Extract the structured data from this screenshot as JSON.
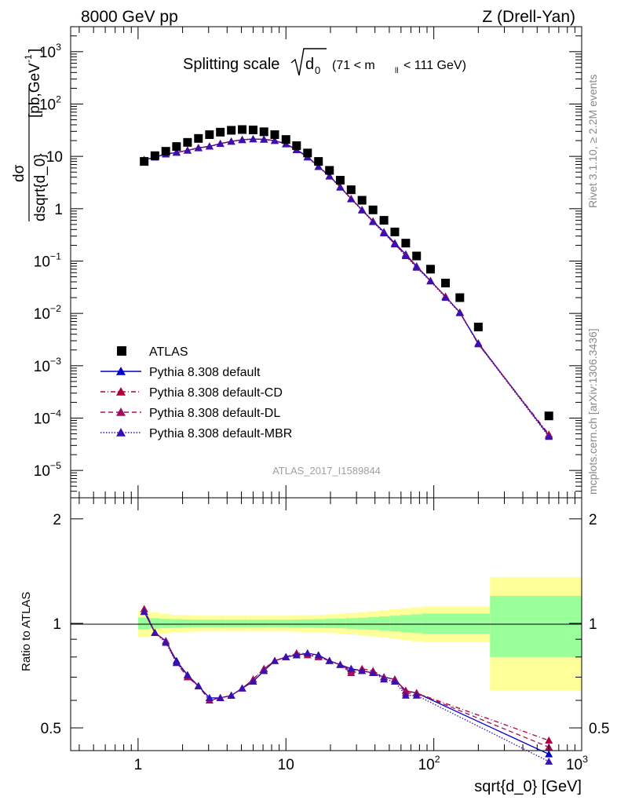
{
  "header": {
    "left_label": "8000 GeV pp",
    "right_label": "Z (Drell-Yan)",
    "title_prefix": "Splitting scale",
    "title_sqrt_arg": "d",
    "title_sqrt_sub": "0",
    "title_range": "(71 < m",
    "title_range_sub": "ll",
    "title_range_end": "< 111 GeV)"
  },
  "side": {
    "rivet": "Rivet 3.1.10, ≥ 2.2M events",
    "mcplots": "mcplots.cern.ch [arXiv:1306.3436]"
  },
  "watermark": "ATLAS_2017_I1589844",
  "axes": {
    "xlabel": "sqrt{d_0} [GeV]",
    "ylabel_main": "[pb,GeV",
    "ylabel_main_sup": "-1",
    "ylabel_main_end": "]",
    "ylabel_frac_num": "dσ",
    "ylabel_frac_den": "dsqrt{d_0}",
    "ylabel_ratio": "Ratio to ATLAS",
    "x_ticks": [
      "1",
      "10",
      "10",
      "10"
    ],
    "x_tick_sups": [
      "",
      "",
      "2",
      "3"
    ],
    "y_ticks_main": [
      {
        "base": "10",
        "sup": "3"
      },
      {
        "base": "10",
        "sup": "2"
      },
      {
        "base": "10",
        "sup": ""
      },
      {
        "base": "1",
        "sup": ""
      },
      {
        "base": "10",
        "sup": "−1"
      },
      {
        "base": "10",
        "sup": "−2"
      },
      {
        "base": "10",
        "sup": "−3"
      },
      {
        "base": "10",
        "sup": "−4"
      },
      {
        "base": "10",
        "sup": "−5"
      }
    ],
    "y_ticks_ratio": [
      "2",
      "1",
      "0.5"
    ]
  },
  "legend": {
    "entries": [
      {
        "label": "ATLAS",
        "color": "#000000",
        "marker": "square",
        "dash": ""
      },
      {
        "label": "Pythia 8.308 default",
        "color": "#0000cc",
        "marker": "triangle",
        "dash": ""
      },
      {
        "label": "Pythia 8.308 default-CD",
        "color": "#b0003c",
        "marker": "triangle",
        "dash": "6,3,1,3"
      },
      {
        "label": "Pythia 8.308 default-DL",
        "color": "#a0105a",
        "marker": "triangle",
        "dash": "6,4"
      },
      {
        "label": "Pythia 8.308 default-MBR",
        "color": "#3a10b0",
        "marker": "triangle",
        "dash": "1.5,2"
      }
    ]
  },
  "chart_data": {
    "type": "scatter",
    "title": "Splitting scale sqrt(d_0) (71 < m_ll < 111 GeV)",
    "xlabel": "sqrt{d_0} [GeV]",
    "ylabel": "dσ/dsqrt{d_0} [pb,GeV^-1]",
    "xscale": "log",
    "yscale": "log",
    "xlim": [
      0.35,
      1000
    ],
    "ylim_main": [
      3e-06,
      3000
    ],
    "ylim_ratio": [
      0.43,
      2.3
    ],
    "x": [
      1.1,
      1.3,
      1.54,
      1.82,
      2.16,
      2.56,
      3.04,
      3.6,
      4.27,
      5.06,
      6.0,
      7.1,
      8.4,
      10.0,
      11.8,
      14.0,
      16.6,
      19.7,
      23.3,
      27.6,
      32.7,
      38.8,
      46.0,
      54.5,
      64.6,
      76.5,
      95.0,
      120.0,
      150.0,
      200.0,
      600.0
    ],
    "series": [
      {
        "name": "ATLAS",
        "values": [
          8.0,
          10.3,
          12.5,
          15.4,
          18.5,
          22.0,
          26.0,
          29.0,
          31.5,
          32.5,
          32.0,
          29.5,
          26.0,
          21.0,
          16.0,
          11.6,
          8.0,
          5.4,
          3.5,
          2.3,
          1.45,
          0.95,
          0.6,
          0.36,
          0.22,
          0.125,
          0.07,
          0.038,
          0.02,
          0.0055,
          0.00011
        ]
      },
      {
        "name": "Pythia 8.308 default",
        "values": [
          8.6,
          9.6,
          11.0,
          11.9,
          13.0,
          14.5,
          15.5,
          17.5,
          19.3,
          20.8,
          21.5,
          21.2,
          20.0,
          17.3,
          13.5,
          9.8,
          6.4,
          4.2,
          2.6,
          1.55,
          0.95,
          0.58,
          0.36,
          0.22,
          0.135,
          0.08,
          0.042,
          0.021,
          0.0105,
          0.0027,
          4.6e-05
        ]
      },
      {
        "name": "Pythia 8.308 default-CD",
        "values": [
          8.6,
          9.7,
          11.1,
          12.0,
          13.0,
          14.6,
          15.6,
          17.5,
          19.3,
          20.7,
          21.4,
          21.0,
          20.0,
          17.2,
          13.3,
          9.7,
          6.4,
          4.2,
          2.6,
          1.55,
          0.95,
          0.57,
          0.35,
          0.21,
          0.13,
          0.078,
          0.042,
          0.021,
          0.0104,
          0.0026,
          4.9e-05
        ]
      },
      {
        "name": "Pythia 8.308 default-DL",
        "values": [
          8.6,
          9.7,
          11.1,
          12.0,
          13.0,
          14.6,
          15.6,
          17.5,
          19.3,
          20.7,
          21.4,
          21.0,
          20.0,
          17.2,
          13.3,
          9.7,
          6.4,
          4.2,
          2.6,
          1.55,
          0.95,
          0.57,
          0.35,
          0.21,
          0.13,
          0.078,
          0.042,
          0.021,
          0.0104,
          0.0026,
          4.7e-05
        ]
      },
      {
        "name": "Pythia 8.308 default-MBR",
        "values": [
          8.5,
          9.6,
          11.0,
          11.8,
          12.9,
          14.4,
          15.5,
          17.4,
          19.2,
          20.6,
          21.3,
          21.0,
          19.9,
          17.1,
          13.2,
          9.6,
          6.3,
          4.15,
          2.55,
          1.52,
          0.93,
          0.56,
          0.34,
          0.21,
          0.125,
          0.075,
          0.041,
          0.02,
          0.0102,
          0.0026,
          4.4e-05
        ]
      }
    ],
    "ratio": [
      {
        "name": "Pythia 8.308 default",
        "values": [
          1.08,
          0.94,
          0.89,
          0.78,
          0.71,
          0.66,
          0.61,
          0.61,
          0.62,
          0.65,
          0.68,
          0.73,
          0.78,
          0.8,
          0.81,
          0.82,
          0.81,
          0.78,
          0.76,
          0.74,
          0.73,
          0.72,
          0.7,
          0.69,
          0.64,
          0.63,
          null,
          null,
          null,
          null,
          0.42
        ]
      },
      {
        "name": "Pythia 8.308 default-CD",
        "values": [
          1.1,
          0.94,
          0.89,
          0.77,
          0.7,
          0.66,
          0.6,
          0.61,
          0.62,
          0.65,
          0.69,
          0.74,
          0.78,
          0.8,
          0.82,
          0.82,
          0.8,
          0.78,
          0.76,
          0.73,
          0.74,
          0.73,
          0.7,
          0.69,
          0.64,
          0.63,
          null,
          null,
          null,
          null,
          0.46
        ]
      },
      {
        "name": "Pythia 8.308 default-DL",
        "values": [
          1.1,
          0.94,
          0.89,
          0.77,
          0.7,
          0.66,
          0.6,
          0.61,
          0.62,
          0.65,
          0.69,
          0.74,
          0.78,
          0.8,
          0.82,
          0.81,
          0.8,
          0.78,
          0.76,
          0.72,
          0.73,
          0.72,
          0.7,
          0.69,
          0.63,
          0.63,
          null,
          null,
          null,
          null,
          0.44
        ]
      },
      {
        "name": "Pythia 8.308 default-MBR",
        "values": [
          1.08,
          0.94,
          0.88,
          0.77,
          0.71,
          0.66,
          0.61,
          0.61,
          0.62,
          0.65,
          0.68,
          0.73,
          0.78,
          0.8,
          0.81,
          0.82,
          0.81,
          0.78,
          0.76,
          0.74,
          0.73,
          0.72,
          0.69,
          0.68,
          0.62,
          0.62,
          null,
          null,
          null,
          null,
          0.4
        ]
      }
    ],
    "uncertainty_bands": {
      "edges": [
        1.0,
        1.2,
        1.4,
        1.67,
        2.0,
        2.35,
        2.8,
        3.3,
        3.9,
        4.65,
        5.5,
        6.5,
        7.7,
        9.2,
        10.9,
        12.9,
        15.3,
        18.2,
        21.5,
        25.5,
        30.2,
        35.8,
        42.4,
        50.2,
        59.5,
        70.5,
        83.5,
        240.0,
        1000.0
      ],
      "stat_half": [
        0.04,
        0.035,
        0.03,
        0.028,
        0.026,
        0.025,
        0.025,
        0.025,
        0.025,
        0.025,
        0.025,
        0.025,
        0.025,
        0.025,
        0.026,
        0.027,
        0.028,
        0.03,
        0.032,
        0.035,
        0.038,
        0.042,
        0.047,
        0.052,
        0.057,
        0.062,
        0.067,
        0.2
      ],
      "total_half": [
        0.085,
        0.075,
        0.065,
        0.058,
        0.055,
        0.053,
        0.052,
        0.052,
        0.052,
        0.052,
        0.052,
        0.052,
        0.052,
        0.052,
        0.054,
        0.056,
        0.058,
        0.062,
        0.066,
        0.071,
        0.077,
        0.083,
        0.09,
        0.098,
        0.105,
        0.112,
        0.118,
        0.36
      ],
      "stat_color": "#99ff99",
      "total_color": "#ffff99"
    },
    "legend_position": "lower-left"
  }
}
